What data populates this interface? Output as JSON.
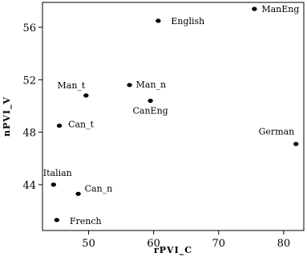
{
  "chart_data": {
    "type": "scatter",
    "title": "",
    "xlabel": "rPVI_C",
    "ylabel": "nPVI_V",
    "xlim": [
      42.9,
      83.1
    ],
    "ylim": [
      40.5,
      57.9
    ],
    "xticks": [
      50,
      60,
      70,
      80
    ],
    "yticks": [
      44,
      48,
      52,
      56
    ],
    "grid": false,
    "points": [
      {
        "label": "ManEng",
        "x": 75.5,
        "y": 57.4
      },
      {
        "label": "English",
        "x": 60.7,
        "y": 56.5
      },
      {
        "label": "Man_n",
        "x": 56.3,
        "y": 51.6
      },
      {
        "label": "Man_t",
        "x": 49.6,
        "y": 50.8
      },
      {
        "label": "CanEng",
        "x": 59.5,
        "y": 50.4
      },
      {
        "label": "Can_t",
        "x": 45.5,
        "y": 48.5
      },
      {
        "label": "German",
        "x": 81.9,
        "y": 47.1
      },
      {
        "label": "Italian",
        "x": 44.6,
        "y": 44.0
      },
      {
        "label": "Can_n",
        "x": 48.4,
        "y": 43.3
      },
      {
        "label": "French",
        "x": 45.1,
        "y": 41.3
      }
    ]
  }
}
